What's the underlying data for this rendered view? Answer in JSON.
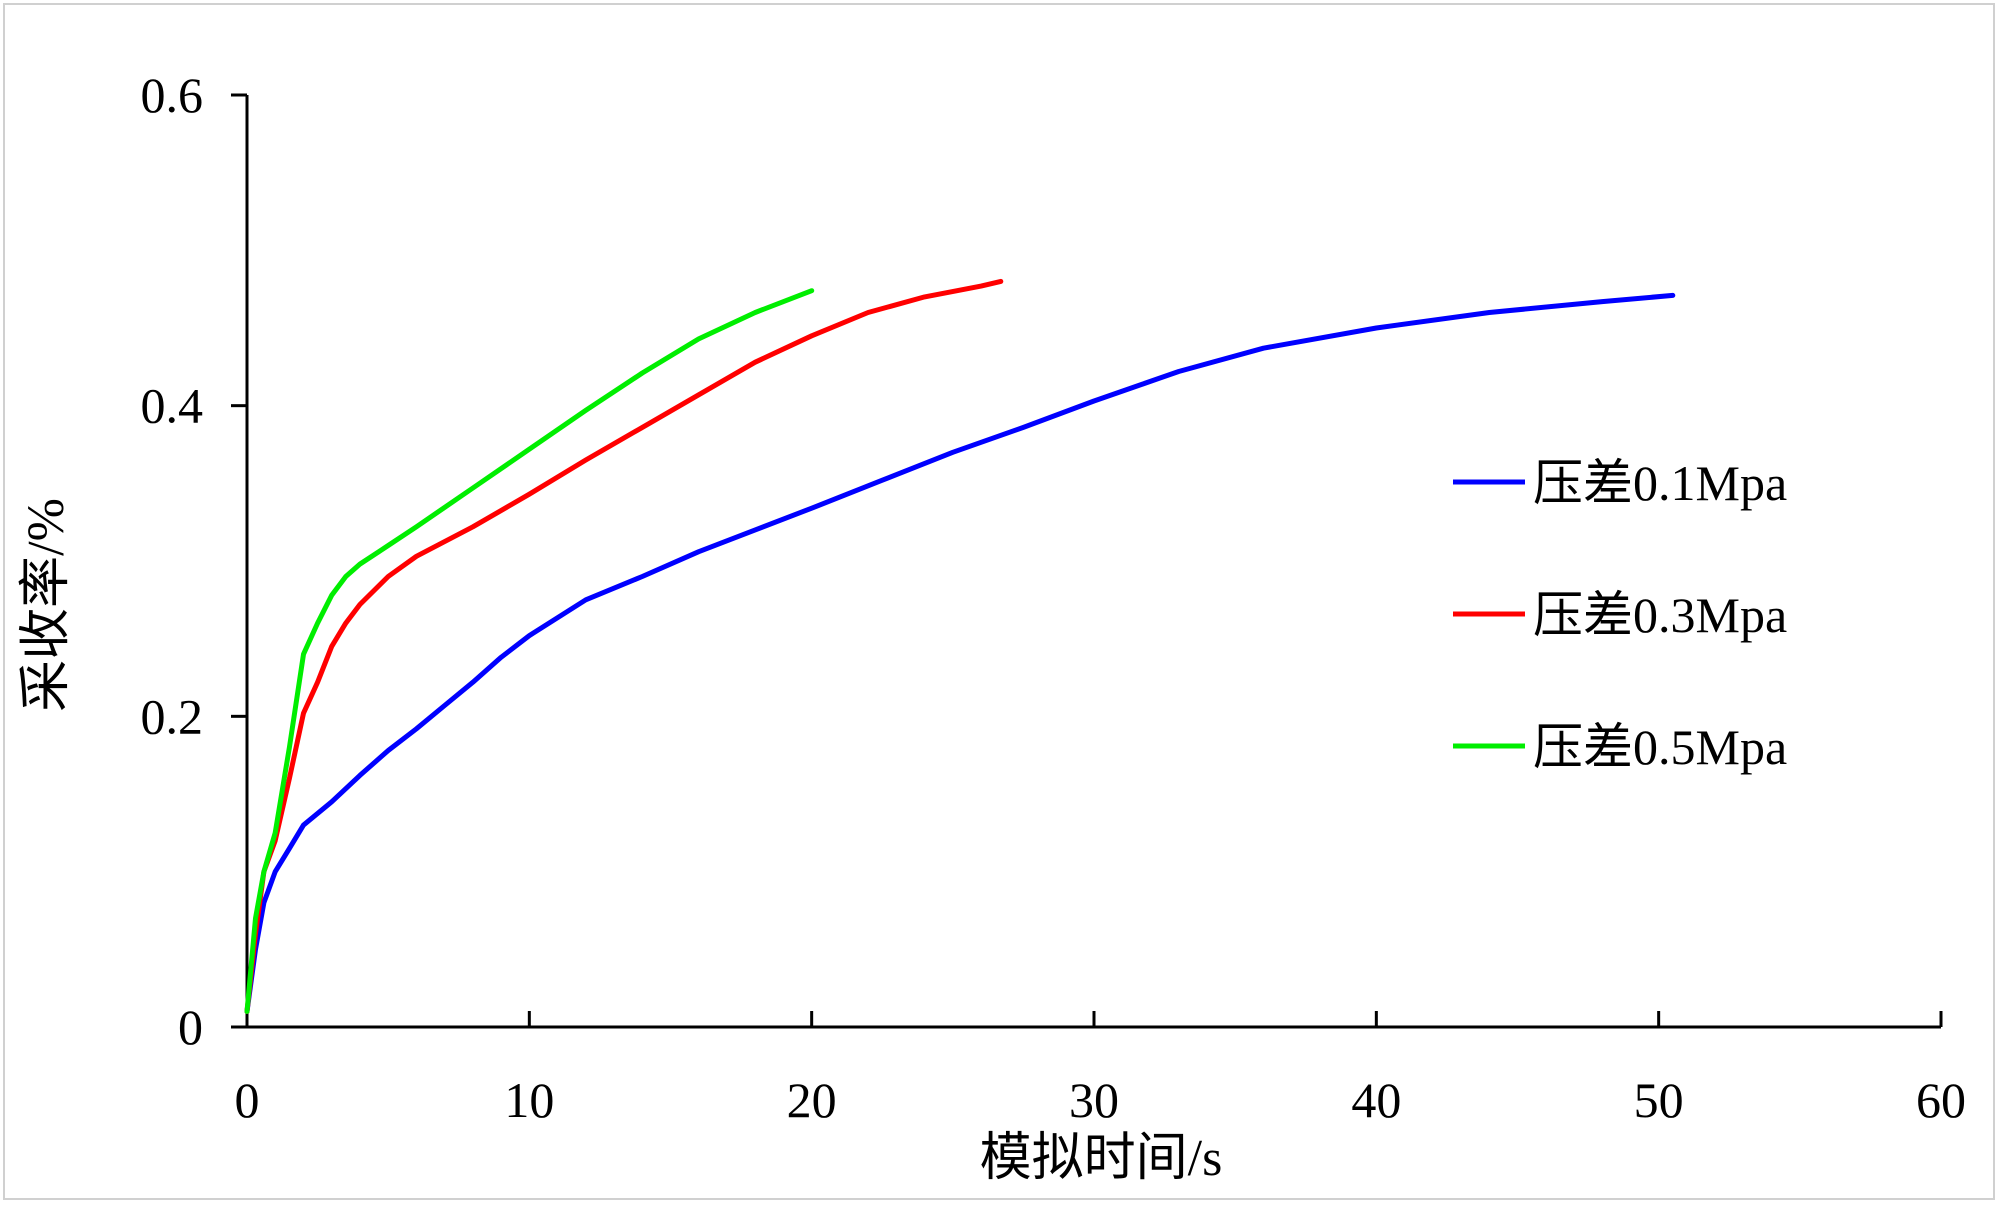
{
  "chart_data": {
    "type": "line",
    "title": "",
    "xlabel": "模拟时间/s",
    "ylabel": "采收率/%",
    "xlim": [
      0,
      60
    ],
    "ylim": [
      0,
      0.6
    ],
    "xticks": [
      0,
      10,
      20,
      30,
      40,
      50,
      60
    ],
    "yticks": [
      0,
      0.2,
      0.4,
      0.6
    ],
    "xtick_labels": [
      "0",
      "10",
      "20",
      "30",
      "40",
      "50",
      "60"
    ],
    "ytick_labels": [
      "0",
      "0.2",
      "0.4",
      "0.6"
    ],
    "grid": false,
    "legend": "right",
    "series": [
      {
        "name": "压差0.1Mpa",
        "color": "#0000ff",
        "x": [
          0,
          0.3,
          0.6,
          1,
          1.5,
          2,
          3,
          4,
          5,
          6,
          7,
          8,
          9,
          10,
          12,
          14,
          16,
          18,
          20,
          22.5,
          25,
          27.5,
          30,
          33,
          36,
          40,
          44,
          48,
          50.5
        ],
        "y": [
          0.01,
          0.05,
          0.08,
          0.1,
          0.115,
          0.13,
          0.145,
          0.162,
          0.178,
          0.192,
          0.207,
          0.222,
          0.238,
          0.252,
          0.275,
          0.29,
          0.306,
          0.32,
          0.334,
          0.352,
          0.37,
          0.386,
          0.403,
          0.422,
          0.437,
          0.45,
          0.46,
          0.467,
          0.471
        ]
      },
      {
        "name": "压差0.3Mpa",
        "color": "#ff0000",
        "x": [
          0,
          0.3,
          0.6,
          1,
          1.5,
          2,
          2.5,
          3,
          3.5,
          4,
          5,
          6,
          8,
          10,
          12,
          14,
          16,
          18,
          20,
          22,
          24,
          26,
          26.7
        ],
        "y": [
          0.01,
          0.06,
          0.1,
          0.12,
          0.16,
          0.202,
          0.222,
          0.245,
          0.26,
          0.272,
          0.29,
          0.303,
          0.322,
          0.343,
          0.365,
          0.386,
          0.407,
          0.428,
          0.445,
          0.46,
          0.47,
          0.477,
          0.48
        ]
      },
      {
        "name": "压差0.5Mpa",
        "color": "#00ee00",
        "x": [
          0,
          0.3,
          0.6,
          1,
          1.5,
          2,
          2.5,
          3,
          3.5,
          4,
          5,
          6,
          8,
          10,
          12,
          14,
          16,
          18,
          20
        ],
        "y": [
          0.01,
          0.07,
          0.1,
          0.125,
          0.18,
          0.24,
          0.26,
          0.278,
          0.29,
          0.298,
          0.31,
          0.322,
          0.347,
          0.372,
          0.397,
          0.421,
          0.443,
          0.46,
          0.474
        ]
      }
    ]
  }
}
